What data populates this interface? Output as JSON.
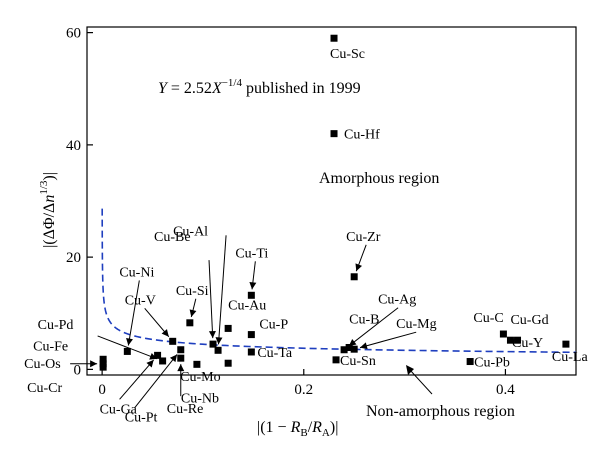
{
  "chart_data": {
    "type": "scatter",
    "xlabel": "|(1 − R_B/R_A)|",
    "ylabel": "|(ΔΦ/Δn^{1/3})|",
    "xlim": [
      -0.015,
      0.47
    ],
    "ylim": [
      -1,
      61
    ],
    "x_ticks": [
      0,
      0.2,
      0.4
    ],
    "x_tick_labels": [
      "0",
      "0.2",
      "0.4"
    ],
    "y_ticks": [
      0,
      20,
      40,
      60
    ],
    "y_tick_labels": [
      "0",
      "20",
      "40",
      "60"
    ],
    "grid": false,
    "fit": {
      "label_parts": [
        "Y",
        " = 2.52",
        "X",
        "−1/4",
        " published in 1999"
      ],
      "coefficient": 2.52,
      "exponent": -0.25,
      "color": "#1f3fbf",
      "style": "dashed"
    },
    "regions": {
      "amorphous": "Amorphous region",
      "non_amorphous": "Non-amorphous region"
    },
    "points": [
      {
        "name": "Cu-Sc",
        "x": 0.23,
        "y": 59.0
      },
      {
        "name": "Cu-Hf",
        "x": 0.23,
        "y": 42.0
      },
      {
        "name": "Cu-Zr",
        "x": 0.25,
        "y": 16.5
      },
      {
        "name": "Cu-Ti",
        "x": 0.148,
        "y": 13.2
      },
      {
        "name": "Cu-Si",
        "x": 0.087,
        "y": 8.3
      },
      {
        "name": "Cu-Au",
        "x": 0.125,
        "y": 7.3
      },
      {
        "name": "Cu-P",
        "x": 0.148,
        "y": 6.2
      },
      {
        "name": "Cu-Ag",
        "x": 0.24,
        "y": 3.5
      },
      {
        "name": "Cu-B",
        "x": 0.245,
        "y": 3.9
      },
      {
        "name": "Cu-Mg",
        "x": 0.25,
        "y": 3.6
      },
      {
        "name": "Cu-Sn",
        "x": 0.232,
        "y": 1.7
      },
      {
        "name": "Cu-Ta",
        "x": 0.148,
        "y": 3.1
      },
      {
        "name": "Cu-C",
        "x": 0.398,
        "y": 6.3
      },
      {
        "name": "Cu-Gd",
        "x": 0.405,
        "y": 5.2
      },
      {
        "name": "Cu-Y",
        "x": 0.412,
        "y": 5.2
      },
      {
        "name": "Cu-La",
        "x": 0.46,
        "y": 4.5
      },
      {
        "name": "Cu-Pb",
        "x": 0.365,
        "y": 1.4
      },
      {
        "name": "Cu-Al",
        "x": 0.115,
        "y": 3.4
      },
      {
        "name": "Cu-Be",
        "x": 0.11,
        "y": 4.5
      },
      {
        "name": "Cu-Mo",
        "x": 0.125,
        "y": 1.1
      },
      {
        "name": "Cu-Nb",
        "x": 0.094,
        "y": 0.9
      },
      {
        "name": "Cu-Re",
        "x": 0.078,
        "y": 2.0
      },
      {
        "name": "Cu-Pt",
        "x": 0.078,
        "y": 3.5
      },
      {
        "name": "Cu-V",
        "x": 0.07,
        "y": 5.0
      },
      {
        "name": "Cu-Ga",
        "x": 0.055,
        "y": 2.5
      },
      {
        "name": "Cu-Ni",
        "x": 0.025,
        "y": 3.2
      },
      {
        "name": "Cu-Pd",
        "x": 0.06,
        "y": 1.5
      },
      {
        "name": "Cu-Fe",
        "x": 0.001,
        "y": 1.8
      },
      {
        "name": "Cu-Os",
        "x": 0.001,
        "y": 1.0
      },
      {
        "name": "Cu-Cr",
        "x": 0.001,
        "y": 0.4
      }
    ]
  }
}
